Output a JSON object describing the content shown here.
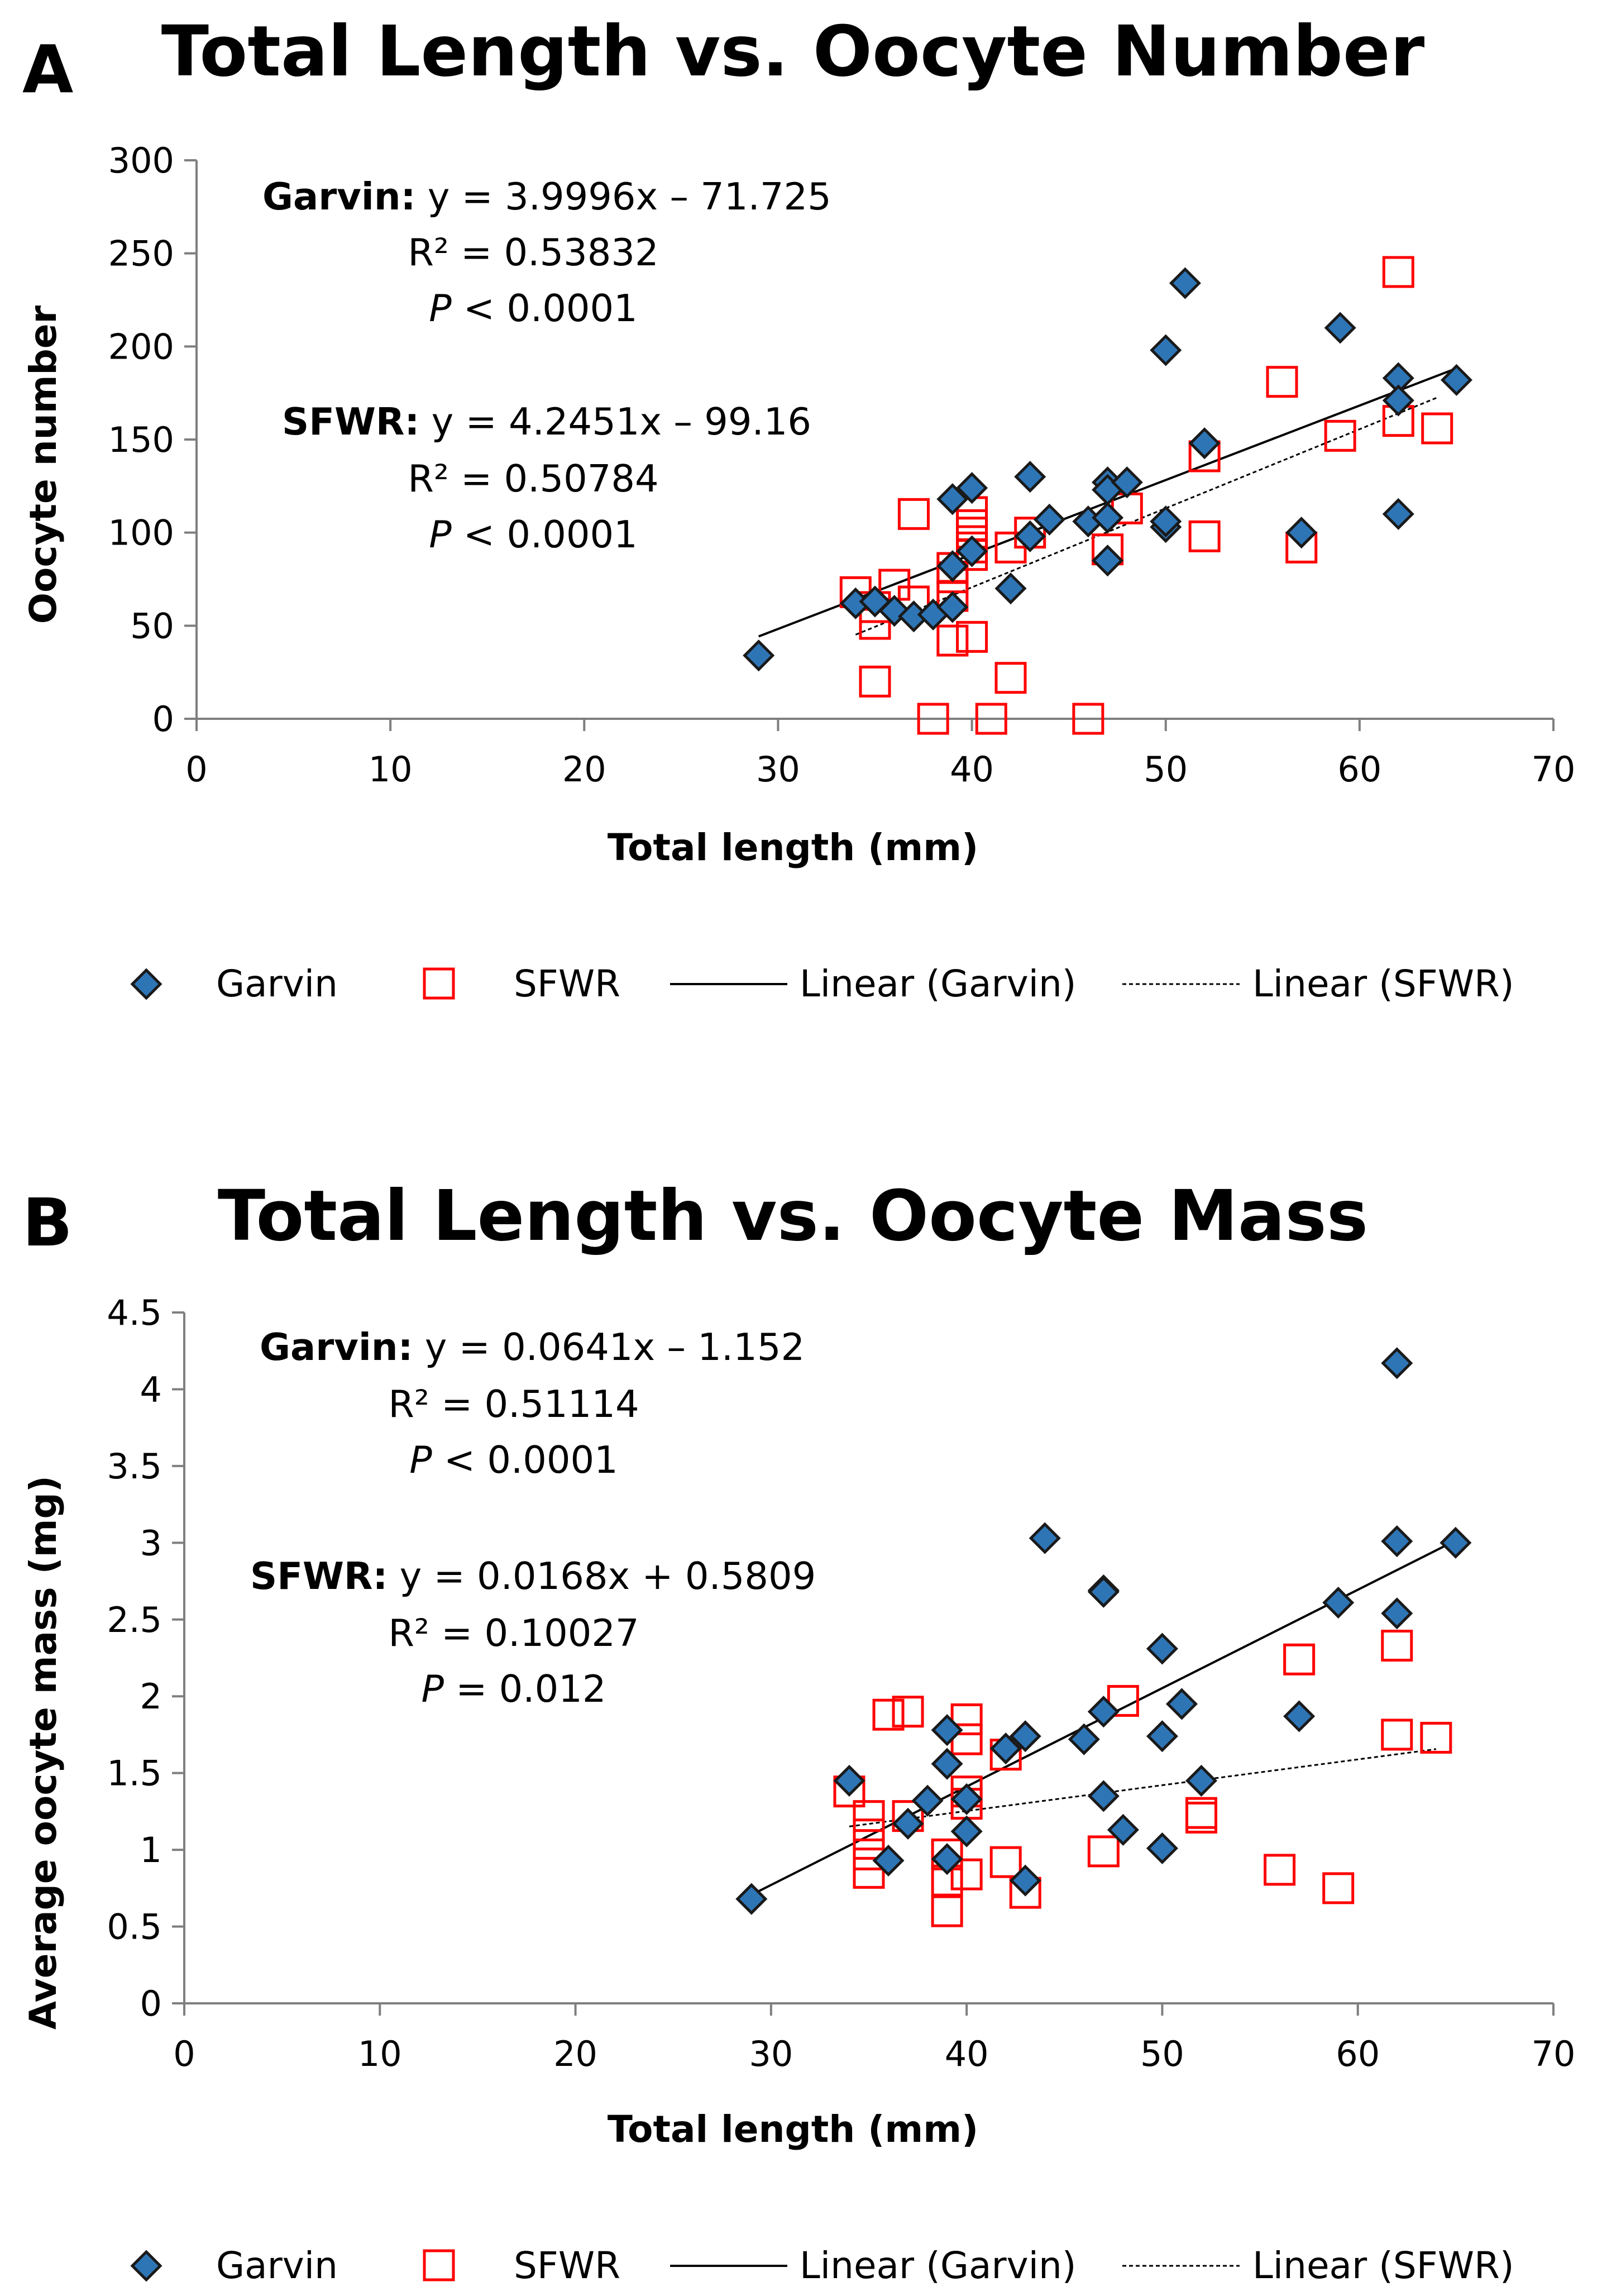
{
  "chart_data": [
    {
      "type": "scatter",
      "panel_label": "A",
      "title": "Total Length vs. Oocyte Number",
      "xlabel": "Total length (mm)",
      "ylabel": "Oocyte number",
      "xlim": [
        0,
        70
      ],
      "ylim": [
        0,
        300
      ],
      "xticks": [
        0,
        10,
        20,
        30,
        40,
        50,
        60,
        70
      ],
      "yticks": [
        0,
        50,
        100,
        150,
        200,
        250,
        300
      ],
      "grid": false,
      "legend_position": "bottom",
      "annotations": [
        {
          "series": "Garvin",
          "label": "Garvin:",
          "equation": "y = 3.9996x – 71.725",
          "r2": "R² = 0.53832",
          "p_italic": "P",
          "p_rest": " < 0.0001"
        },
        {
          "series": "SFWR",
          "label": "SFWR:",
          "equation": "y = 4.2451x – 99.16",
          "r2": "R² = 0.50784",
          "p_italic": "P",
          "p_rest": " < 0.0001"
        }
      ],
      "series": [
        {
          "name": "Garvin",
          "marker": "diamond",
          "color": "#2E75B6",
          "edge": "#1a1a1a",
          "points": [
            [
              29,
              34
            ],
            [
              34,
              62
            ],
            [
              35,
              63
            ],
            [
              36,
              58
            ],
            [
              37,
              55
            ],
            [
              38,
              56
            ],
            [
              39,
              60
            ],
            [
              39,
              82
            ],
            [
              39,
              118
            ],
            [
              40,
              90
            ],
            [
              40,
              124
            ],
            [
              42,
              70
            ],
            [
              43,
              98
            ],
            [
              43,
              130
            ],
            [
              44,
              107
            ],
            [
              46,
              106
            ],
            [
              47,
              127
            ],
            [
              47,
              123
            ],
            [
              47,
              108
            ],
            [
              47,
              85
            ],
            [
              48,
              127
            ],
            [
              50,
              103
            ],
            [
              50,
              106
            ],
            [
              50,
              198
            ],
            [
              51,
              234
            ],
            [
              52,
              148
            ],
            [
              57,
              100
            ],
            [
              59,
              210
            ],
            [
              62,
              183
            ],
            [
              62,
              171
            ],
            [
              62,
              110
            ],
            [
              65,
              182
            ]
          ]
        },
        {
          "name": "SFWR",
          "marker": "square",
          "color": "#FF0000",
          "points": [
            [
              34,
              68
            ],
            [
              35,
              60
            ],
            [
              35,
              51
            ],
            [
              35,
              20
            ],
            [
              36,
              72
            ],
            [
              37,
              110
            ],
            [
              37,
              63
            ],
            [
              38,
              0
            ],
            [
              39,
              42
            ],
            [
              39,
              66
            ],
            [
              39,
              76
            ],
            [
              39,
              81
            ],
            [
              40,
              44
            ],
            [
              40,
              88
            ],
            [
              40,
              92
            ],
            [
              40,
              100
            ],
            [
              40,
              104
            ],
            [
              40,
              111
            ],
            [
              41,
              0
            ],
            [
              42,
              22
            ],
            [
              42,
              92
            ],
            [
              43,
              100
            ],
            [
              46,
              0
            ],
            [
              47,
              91
            ],
            [
              48,
              113
            ],
            [
              52,
              98
            ],
            [
              52,
              141
            ],
            [
              56,
              181
            ],
            [
              57,
              92
            ],
            [
              59,
              152
            ],
            [
              62,
              160
            ],
            [
              62,
              240
            ],
            [
              64,
              156
            ]
          ]
        }
      ],
      "trendlines": [
        {
          "name": "Linear (Garvin)",
          "style": "solid",
          "slope": 3.9996,
          "intercept": -71.725,
          "x_range": [
            29,
            65
          ]
        },
        {
          "name": "Linear (SFWR)",
          "style": "dashed",
          "slope": 4.2451,
          "intercept": -99.16,
          "x_range": [
            34,
            64
          ]
        }
      ],
      "legend": [
        "Garvin",
        "SFWR",
        "Linear (Garvin)",
        "Linear (SFWR)"
      ]
    },
    {
      "type": "scatter",
      "panel_label": "B",
      "title": "Total Length vs. Oocyte Mass",
      "xlabel": "Total length (mm)",
      "ylabel": "Average oocyte mass (mg)",
      "xlim": [
        0,
        70
      ],
      "ylim": [
        0,
        4.5
      ],
      "xticks": [
        0,
        10,
        20,
        30,
        40,
        50,
        60,
        70
      ],
      "yticks": [
        0,
        0.5,
        1,
        1.5,
        2,
        2.5,
        3,
        3.5,
        4,
        4.5
      ],
      "grid": false,
      "legend_position": "bottom",
      "annotations": [
        {
          "series": "Garvin",
          "label": "Garvin:",
          "equation": "y = 0.0641x – 1.152",
          "r2": "R² = 0.51114",
          "p_italic": "P",
          "p_rest": " < 0.0001"
        },
        {
          "series": "SFWR",
          "label": "SFWR:",
          "equation": "y = 0.0168x + 0.5809",
          "r2": "R² = 0.10027",
          "p_italic": "P",
          "p_rest": " = 0.012"
        }
      ],
      "series": [
        {
          "name": "Garvin",
          "marker": "diamond",
          "color": "#2E75B6",
          "edge": "#1a1a1a",
          "points": [
            [
              29,
              0.68
            ],
            [
              34,
              1.45
            ],
            [
              36,
              0.93
            ],
            [
              37,
              1.17
            ],
            [
              38,
              1.32
            ],
            [
              39,
              1.78
            ],
            [
              39,
              1.56
            ],
            [
              39,
              0.94
            ],
            [
              40,
              1.33
            ],
            [
              40,
              1.12
            ],
            [
              42,
              1.66
            ],
            [
              43,
              1.74
            ],
            [
              43,
              0.8
            ],
            [
              44,
              3.03
            ],
            [
              46,
              1.72
            ],
            [
              47,
              2.69
            ],
            [
              47,
              2.68
            ],
            [
              47,
              1.9
            ],
            [
              47,
              1.35
            ],
            [
              48,
              1.13
            ],
            [
              50,
              2.31
            ],
            [
              50,
              1.74
            ],
            [
              50,
              1.01
            ],
            [
              51,
              1.95
            ],
            [
              52,
              1.45
            ],
            [
              57,
              1.87
            ],
            [
              59,
              2.61
            ],
            [
              62,
              4.17
            ],
            [
              62,
              3.01
            ],
            [
              62,
              2.54
            ],
            [
              65,
              3.0
            ]
          ]
        },
        {
          "name": "SFWR",
          "marker": "square",
          "color": "#FF0000",
          "points": [
            [
              34,
              1.38
            ],
            [
              35,
              1.22
            ],
            [
              35,
              1.1
            ],
            [
              35,
              0.97
            ],
            [
              35,
              0.85
            ],
            [
              36,
              1.88
            ],
            [
              37,
              1.9
            ],
            [
              37,
              1.22
            ],
            [
              39,
              0.97
            ],
            [
              39,
              0.8
            ],
            [
              39,
              0.6
            ],
            [
              40,
              1.85
            ],
            [
              40,
              1.72
            ],
            [
              40,
              1.38
            ],
            [
              40,
              1.3
            ],
            [
              40,
              0.84
            ],
            [
              42,
              1.62
            ],
            [
              42,
              0.92
            ],
            [
              43,
              0.72
            ],
            [
              47,
              0.99
            ],
            [
              48,
              1.97
            ],
            [
              52,
              1.24
            ],
            [
              52,
              1.21
            ],
            [
              56,
              0.87
            ],
            [
              57,
              2.24
            ],
            [
              59,
              0.75
            ],
            [
              62,
              2.33
            ],
            [
              62,
              1.75
            ],
            [
              64,
              1.73
            ]
          ]
        }
      ],
      "trendlines": [
        {
          "name": "Linear (Garvin)",
          "style": "solid",
          "slope": 0.0641,
          "intercept": -1.152,
          "x_range": [
            29,
            65
          ]
        },
        {
          "name": "Linear (SFWR)",
          "style": "dashed",
          "slope": 0.0168,
          "intercept": 0.5809,
          "x_range": [
            34,
            64
          ]
        }
      ],
      "legend": [
        "Garvin",
        "SFWR",
        "Linear (Garvin)",
        "Linear (SFWR)"
      ]
    }
  ]
}
